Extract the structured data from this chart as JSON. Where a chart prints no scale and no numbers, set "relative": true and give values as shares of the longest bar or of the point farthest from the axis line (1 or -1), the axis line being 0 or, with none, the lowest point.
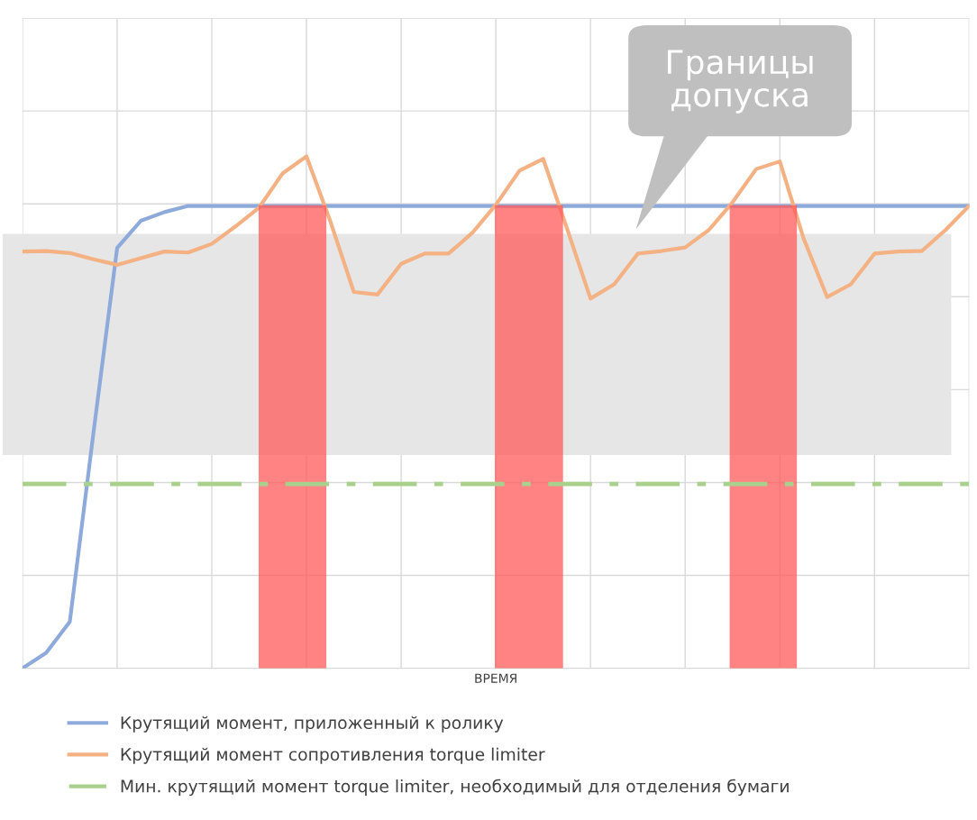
{
  "chart_data": {
    "type": "line",
    "relative": true,
    "xlabel": "ВРЕМЯ",
    "categories": [
      null,
      null,
      null,
      null,
      null,
      null,
      null,
      null,
      null,
      null,
      null,
      null,
      null,
      null,
      null,
      null,
      null,
      null,
      null,
      null,
      null,
      null,
      null,
      null,
      null,
      null,
      null,
      null,
      null,
      null,
      null,
      null,
      null,
      null,
      null,
      null,
      null,
      null,
      null,
      null,
      null
    ],
    "grid": true,
    "legend": "bottom",
    "tick_labels": false,
    "series": [
      {
        "name": "Крутящий момент, приложенный к ролику",
        "color": "#8eaadb",
        "values": [
          0,
          0.03,
          0.091,
          0.46,
          0.821,
          0.874,
          0.891,
          0.903,
          0.903,
          0.903,
          0.903,
          0.903,
          0.903,
          0.903,
          0.903,
          0.903,
          0.903,
          0.903,
          0.903,
          0.903,
          0.903,
          0.903,
          0.903,
          0.903,
          0.903,
          0.903,
          0.903,
          0.903,
          0.903,
          0.903,
          0.903,
          0.903,
          0.903,
          0.903,
          0.903,
          0.903,
          0.903,
          0.903,
          0.903,
          0.903,
          0.903
        ]
      },
      {
        "name": "Крутящий момент сопротивления torque limiter",
        "color": "#f4b183",
        "values": [
          0.814,
          0.815,
          0.811,
          0.799,
          0.788,
          0.801,
          0.814,
          0.812,
          0.829,
          0.863,
          0.9,
          0.967,
          1.0,
          0.874,
          0.735,
          0.73,
          0.79,
          0.81,
          0.81,
          0.85,
          0.905,
          0.972,
          0.995,
          0.86,
          0.722,
          0.75,
          0.81,
          0.815,
          0.822,
          0.856,
          0.91,
          0.975,
          0.99,
          0.84,
          0.725,
          0.75,
          0.81,
          0.814,
          0.815,
          0.856,
          0.903
        ]
      },
      {
        "name": "Мин. крутящий момент torque limiter, необходимый для отделения бумаги",
        "color": "#a9d18e",
        "line_style": "dashed",
        "values": [
          0.36,
          0.36,
          0.36,
          0.36,
          0.36,
          0.36,
          0.36,
          0.36,
          0.36,
          0.36,
          0.36,
          0.36,
          0.36,
          0.36,
          0.36,
          0.36,
          0.36,
          0.36,
          0.36,
          0.36,
          0.36,
          0.36,
          0.36,
          0.36,
          0.36,
          0.36,
          0.36,
          0.36,
          0.36,
          0.36,
          0.36,
          0.36,
          0.36,
          0.36,
          0.36,
          0.36,
          0.36,
          0.36,
          0.36,
          0.36,
          0.36
        ]
      }
    ],
    "annotations": [
      "Границы\nдопуска"
    ]
  }
}
